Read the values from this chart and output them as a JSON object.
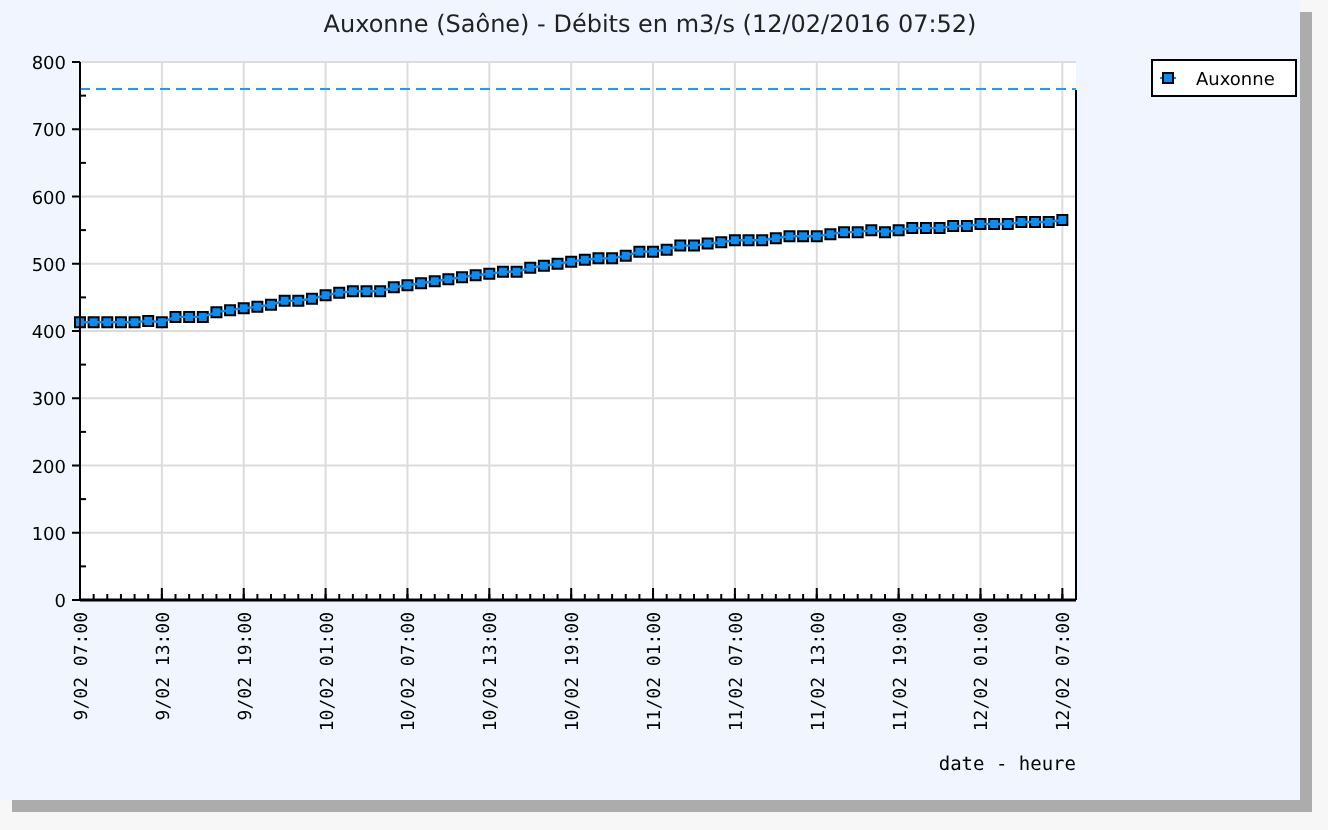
{
  "chart_data": {
    "type": "line",
    "title": "Auxonne (Saône) - Débits en m3/s (12/02/2016 07:52)",
    "xlabel": "date - heure",
    "x": [
      "2016-02-09T07:00",
      "2016-02-09T08:00",
      "2016-02-09T09:00",
      "2016-02-09T10:00",
      "2016-02-09T11:00",
      "2016-02-09T12:00",
      "2016-02-09T13:00",
      "2016-02-09T14:00",
      "2016-02-09T15:00",
      "2016-02-09T16:00",
      "2016-02-09T17:00",
      "2016-02-09T18:00",
      "2016-02-09T19:00",
      "2016-02-09T20:00",
      "2016-02-09T21:00",
      "2016-02-09T22:00",
      "2016-02-09T23:00",
      "2016-02-10T00:00",
      "2016-02-10T01:00",
      "2016-02-10T02:00",
      "2016-02-10T03:00",
      "2016-02-10T04:00",
      "2016-02-10T05:00",
      "2016-02-10T06:00",
      "2016-02-10T07:00",
      "2016-02-10T08:00",
      "2016-02-10T09:00",
      "2016-02-10T10:00",
      "2016-02-10T11:00",
      "2016-02-10T12:00",
      "2016-02-10T13:00",
      "2016-02-10T14:00",
      "2016-02-10T15:00",
      "2016-02-10T16:00",
      "2016-02-10T17:00",
      "2016-02-10T18:00",
      "2016-02-10T19:00",
      "2016-02-10T20:00",
      "2016-02-10T21:00",
      "2016-02-10T22:00",
      "2016-02-10T23:00",
      "2016-02-11T00:00",
      "2016-02-11T01:00",
      "2016-02-11T02:00",
      "2016-02-11T03:00",
      "2016-02-11T04:00",
      "2016-02-11T05:00",
      "2016-02-11T06:00",
      "2016-02-11T07:00",
      "2016-02-11T08:00",
      "2016-02-11T09:00",
      "2016-02-11T10:00",
      "2016-02-11T11:00",
      "2016-02-11T12:00",
      "2016-02-11T13:00",
      "2016-02-11T14:00",
      "2016-02-11T15:00",
      "2016-02-11T16:00",
      "2016-02-11T17:00",
      "2016-02-11T18:00",
      "2016-02-11T19:00",
      "2016-02-11T20:00",
      "2016-02-11T21:00",
      "2016-02-11T22:00",
      "2016-02-11T23:00",
      "2016-02-12T00:00",
      "2016-02-12T01:00",
      "2016-02-12T02:00",
      "2016-02-12T03:00",
      "2016-02-12T04:00",
      "2016-02-12T05:00",
      "2016-02-12T06:00",
      "2016-02-12T07:00"
    ],
    "series": [
      {
        "name": "Auxonne",
        "color": "#0a8cf0",
        "values": [
          413,
          413,
          413,
          413,
          413,
          415,
          413,
          421,
          421,
          421,
          428,
          431,
          434,
          436,
          439,
          445,
          445,
          448,
          453,
          457,
          459,
          459,
          459,
          465,
          468,
          471,
          474,
          477,
          480,
          483,
          485,
          488,
          488,
          494,
          497,
          500,
          503,
          506,
          508,
          508,
          512,
          518,
          518,
          521,
          527,
          527,
          530,
          532,
          535,
          535,
          535,
          538,
          541,
          541,
          541,
          544,
          547,
          547,
          550,
          547,
          550,
          553,
          553,
          553,
          556,
          556,
          559,
          559,
          559,
          562,
          562,
          562,
          565
        ]
      }
    ],
    "xlim": [
      "2016-02-09T07:00",
      "2016-02-12T08:00"
    ],
    "xticks": [
      {
        "value": "2016-02-09T07:00",
        "label": "9/02 07:00"
      },
      {
        "value": "2016-02-09T13:00",
        "label": "9/02 13:00"
      },
      {
        "value": "2016-02-09T19:00",
        "label": "9/02 19:00"
      },
      {
        "value": "2016-02-10T01:00",
        "label": "10/02 01:00"
      },
      {
        "value": "2016-02-10T07:00",
        "label": "10/02 07:00"
      },
      {
        "value": "2016-02-10T13:00",
        "label": "10/02 13:00"
      },
      {
        "value": "2016-02-10T19:00",
        "label": "10/02 19:00"
      },
      {
        "value": "2016-02-11T01:00",
        "label": "11/02 01:00"
      },
      {
        "value": "2016-02-11T07:00",
        "label": "11/02 07:00"
      },
      {
        "value": "2016-02-11T13:00",
        "label": "11/02 13:00"
      },
      {
        "value": "2016-02-11T19:00",
        "label": "11/02 19:00"
      },
      {
        "value": "2016-02-12T01:00",
        "label": "12/02 01:00"
      },
      {
        "value": "2016-02-12T07:00",
        "label": "12/02 07:00"
      }
    ],
    "ylim": [
      0,
      800
    ],
    "yticks": [
      0,
      100,
      200,
      300,
      400,
      500,
      600,
      700,
      800
    ],
    "ref_lines": [
      {
        "axis": "y",
        "value": 760,
        "color": "#1e9bff",
        "line_style": "dashed"
      }
    ],
    "grid": true,
    "legend": "top right",
    "marker": "square",
    "line_style": "solid"
  }
}
